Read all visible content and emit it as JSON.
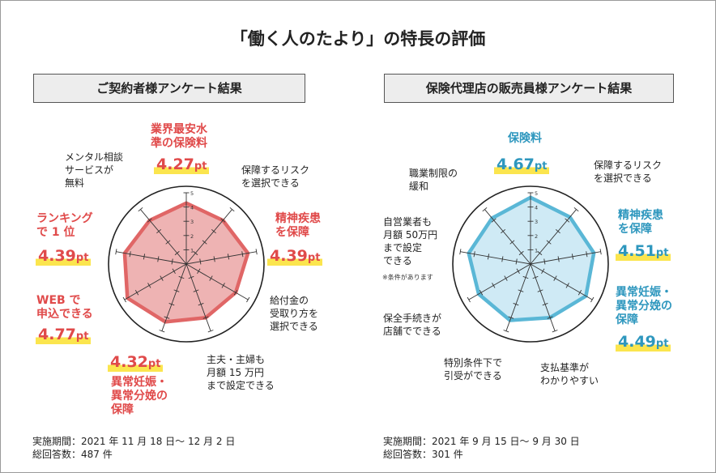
{
  "title": "「働く人のたより」の特長の評価",
  "colors": {
    "left_stroke": "#e06666",
    "left_fill": "#e89a9a",
    "right_stroke": "#5ab7d6",
    "right_fill": "#bfe3f1",
    "highlight": "#fbe54e"
  },
  "chart_data": [
    {
      "type": "radar",
      "title": "ご契約者様アンケート結果",
      "range": [
        0,
        5
      ],
      "ticks": [
        "1",
        "2",
        "3",
        "4",
        "5"
      ],
      "categories": [
        "業界最安水\n準の保険料",
        "保障するリスク\nを選択できる",
        "精神疾患\nを保障",
        "給付金の\n受取り方を\n選択できる",
        "主夫・主婦も\n月額 15 万円\nまで設定できる",
        "異常妊娠・\n異常分娩の\n保障",
        "WEB で\n申込できる",
        "ランキング\nで 1 位",
        "メンタル相談\nサービスが\n無料"
      ],
      "values": [
        4.27,
        4.0,
        4.39,
        4.0,
        4.0,
        4.32,
        4.77,
        4.39,
        4.0
      ],
      "value_labels": [
        "4.27",
        "",
        "4.39",
        "",
        "",
        "4.32",
        "4.77",
        "4.39",
        ""
      ],
      "unit": "pt",
      "footer": {
        "period": "実施期間：2021 年 11 月 18 日～ 12 月 2 日",
        "count": "総回答数：487 件"
      }
    },
    {
      "type": "radar",
      "title": "保険代理店の販売員様アンケート結果",
      "range": [
        0,
        5
      ],
      "ticks": [
        "1",
        "2",
        "3",
        "4",
        "5"
      ],
      "categories": [
        "保険料",
        "保障するリスク\nを選択できる",
        "精神疾患\nを保障",
        "異常妊娠・\n異常分娩の\n保障",
        "支払基準が\nわかりやすい",
        "特別条件下で\n引受ができる",
        "保全手続きが\n店舗でできる",
        "自営業者も\n月額 50万円\nまで設定\nできる",
        "職業制限の\n緩和"
      ],
      "values": [
        4.67,
        4.3,
        4.51,
        4.49,
        4.0,
        4.2,
        4.2,
        4.4,
        4.2
      ],
      "value_labels": [
        "4.67",
        "",
        "4.51",
        "4.49",
        "",
        "",
        "",
        "",
        ""
      ],
      "unit": "pt",
      "note": "※条件があります",
      "footer": {
        "period": "実施期間：2021 年 9 月 15 日～ 9 月 30 日",
        "count": "総回答数：301 件"
      }
    }
  ]
}
